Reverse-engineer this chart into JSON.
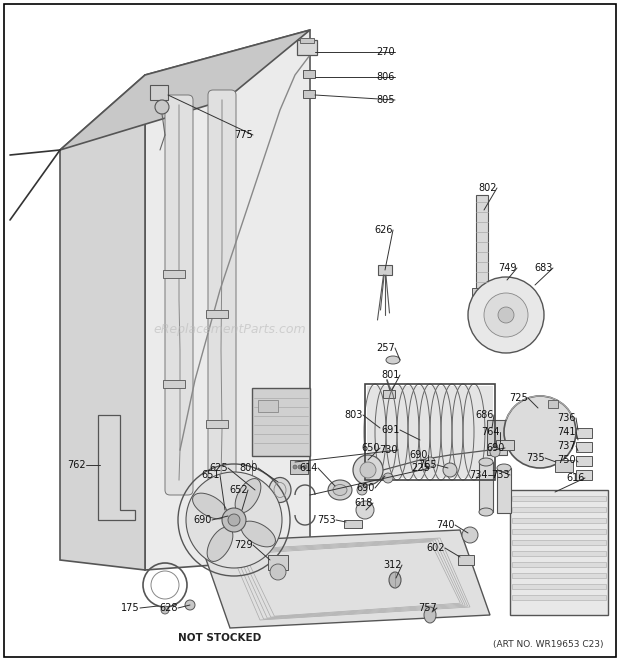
{
  "bg_color": "#ffffff",
  "border_color": "#000000",
  "watermark": "eReplacementParts.com",
  "art_no": "(ART NO. WR19653 C23)",
  "not_stocked": "NOT STOCKED",
  "line_color": "#444444",
  "panel_face": "#ebebeb",
  "panel_side": "#d4d4d4",
  "panel_top": "#c8c8c8",
  "comp_face": "#d8d8d8",
  "comp_edge": "#555555"
}
